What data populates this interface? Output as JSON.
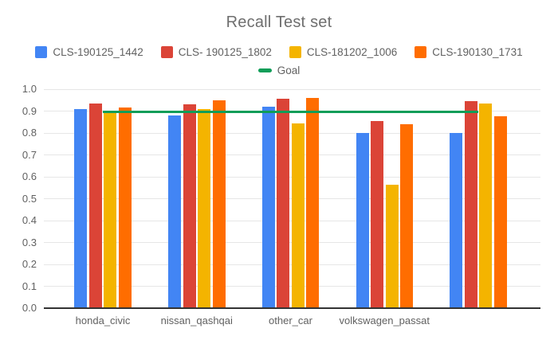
{
  "chart_data": {
    "type": "bar",
    "title": "Recall Test set",
    "categories": [
      "honda_civic",
      "nissan_qashqai",
      "other_car",
      "volkswagen_passat",
      ""
    ],
    "series": [
      {
        "name": "CLS-190125_1442",
        "color": "#4285F4",
        "values": [
          0.91,
          0.88,
          0.92,
          0.8,
          0.8
        ]
      },
      {
        "name": "CLS- 190125_1802",
        "color": "#DB4437",
        "values": [
          0.935,
          0.93,
          0.955,
          0.855,
          0.945
        ]
      },
      {
        "name": "CLS-181202_1006",
        "color": "#F4B400",
        "values": [
          0.89,
          0.91,
          0.845,
          0.565,
          0.935
        ]
      },
      {
        "name": "CLS-190130_1731",
        "color": "#FF6D00",
        "values": [
          0.915,
          0.95,
          0.96,
          0.84,
          0.875
        ]
      }
    ],
    "goal_line": {
      "name": "Goal",
      "value": 0.9,
      "color": "#0F9D58"
    },
    "ylim": [
      0.0,
      1.0
    ],
    "ytick_step": 0.1,
    "ytick_labels": [
      "0.0",
      "0.1",
      "0.2",
      "0.3",
      "0.4",
      "0.5",
      "0.6",
      "0.7",
      "0.8",
      "0.9",
      "1.0"
    ],
    "grid": true,
    "legend_position": "top"
  }
}
